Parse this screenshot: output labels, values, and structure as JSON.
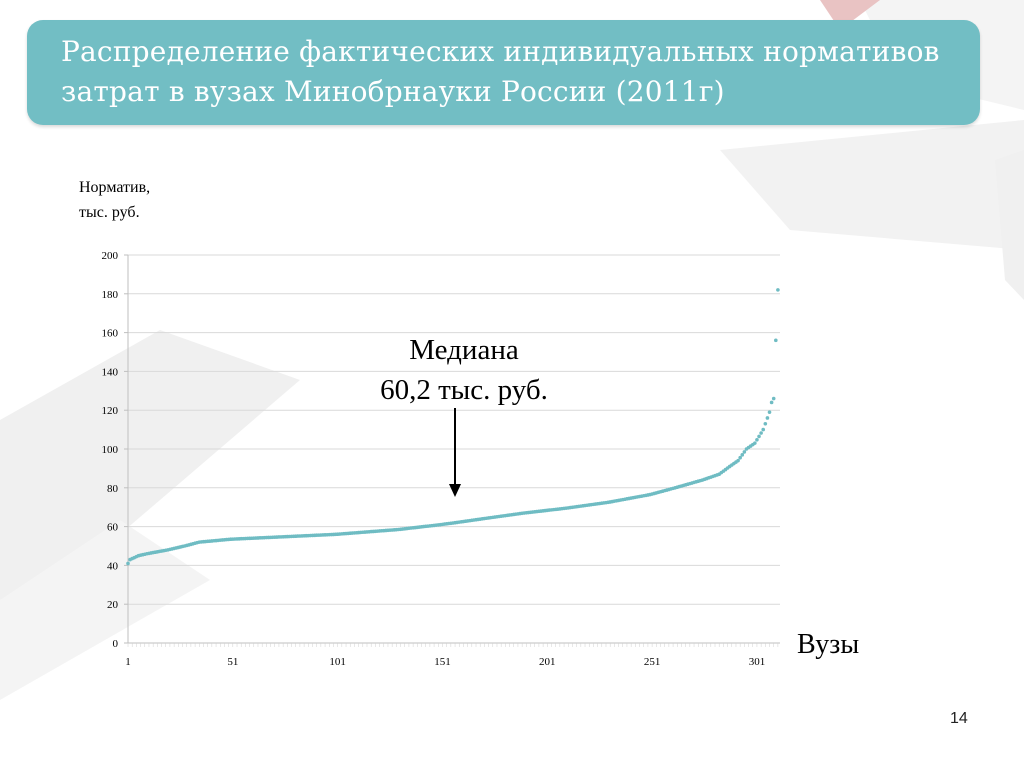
{
  "title": "Распределение фактических индивидуальных нормативов затрат  в вузах Минобрнауки России (2011г)",
  "page_number": "14",
  "colors": {
    "title_bg": "#72bec4",
    "points": "#6fbcc3",
    "grid": "#d9d9d9"
  },
  "chart_data": {
    "type": "scatter",
    "ylabel": "Норматив,\nтыс. руб.",
    "xlabel": "Вузы",
    "ylim": [
      0,
      200
    ],
    "y_ticks": [
      0,
      20,
      40,
      60,
      80,
      100,
      120,
      140,
      160,
      180,
      200
    ],
    "x_ticks": [
      1,
      51,
      101,
      151,
      201,
      251,
      301
    ],
    "xlim": [
      1,
      312
    ],
    "grid": true,
    "annotation": {
      "text": [
        "Медиана",
        "60,2 тыс. руб."
      ],
      "x": 157,
      "y": 60.2
    },
    "curve_anchors": [
      [
        1,
        41
      ],
      [
        2,
        43
      ],
      [
        6,
        45
      ],
      [
        10,
        46
      ],
      [
        20,
        48
      ],
      [
        28,
        50
      ],
      [
        35,
        52
      ],
      [
        50,
        53.5
      ],
      [
        70,
        54.5
      ],
      [
        100,
        56
      ],
      [
        130,
        58.5
      ],
      [
        150,
        61
      ],
      [
        157,
        62
      ],
      [
        170,
        64
      ],
      [
        190,
        67
      ],
      [
        210,
        69.5
      ],
      [
        230,
        72.5
      ],
      [
        250,
        76.5
      ],
      [
        262,
        80
      ],
      [
        275,
        84
      ],
      [
        283,
        87
      ],
      [
        288,
        91
      ],
      [
        292,
        94
      ],
      [
        296,
        100
      ],
      [
        300,
        103
      ],
      [
        304,
        110
      ],
      [
        307,
        119
      ],
      [
        308,
        124
      ],
      [
        309,
        126
      ]
    ],
    "outliers": [
      [
        310,
        156
      ],
      [
        311,
        182
      ]
    ],
    "n_points": 311
  }
}
